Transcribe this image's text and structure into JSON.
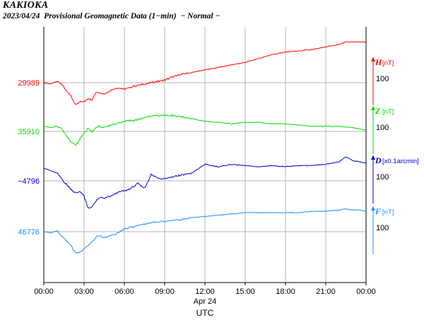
{
  "title": "KAKIOKA",
  "subtitle": "2023/04/24  Provisional Geomagnetic Data (1−min)  − Normal −",
  "colors": {
    "H": "#ff0000",
    "Z": "#00dd00",
    "D": "#0000cc",
    "F": "#1e90ff"
  },
  "chart_data": {
    "type": "line",
    "title": "2023/04/24  Provisional Geomagnetic Data (1−min)  − Normal −",
    "xlabel": "UTC",
    "x_ticks": [
      "00:00",
      "03:00",
      "06:00",
      "09:00",
      "12:00",
      "15:00",
      "18:00",
      "21:00",
      "00:00"
    ],
    "x_date_label": "Apr 24",
    "xlim": [
      "00:00",
      "24:00"
    ],
    "grid": true,
    "series": [
      {
        "name": "H",
        "unit": "[nT]",
        "baseline_label": "29989",
        "scale_label": "100",
        "color": "#ff0000",
        "x": [
          0,
          0.5,
          1,
          1.3,
          1.6,
          2.0,
          2.4,
          2.7,
          3.0,
          3.3,
          3.6,
          3.9,
          4.2,
          4.5,
          5.0,
          5.5,
          6.0,
          7.0,
          8.0,
          9.0,
          10.0,
          11.0,
          12.0,
          13.0,
          14.0,
          15.0,
          16.0,
          17.0,
          18.0,
          19.0,
          20.0,
          21.0,
          22.0,
          22.5,
          23.0,
          23.5,
          24.0
        ],
        "values": [
          0,
          -5,
          5,
          -5,
          -25,
          -50,
          -90,
          -75,
          -75,
          -60,
          -70,
          -35,
          -40,
          -45,
          -30,
          -20,
          -25,
          -10,
          0,
          10,
          30,
          40,
          50,
          60,
          70,
          80,
          95,
          110,
          120,
          125,
          130,
          140,
          150,
          160,
          160,
          160,
          160
        ]
      },
      {
        "name": "Z",
        "unit": "[nT]",
        "baseline_label": "35910",
        "scale_label": "100",
        "color": "#00dd00",
        "x": [
          0,
          0.5,
          1,
          1.3,
          1.6,
          2.0,
          2.4,
          2.7,
          3.0,
          3.3,
          3.6,
          4.0,
          4.5,
          5.0,
          6.0,
          7.0,
          8.0,
          9.0,
          10.0,
          10.5,
          11.0,
          12.0,
          13.0,
          14.0,
          15.0,
          16.0,
          17.0,
          18.0,
          19.0,
          20.0,
          21.0,
          22.0,
          23.0,
          23.5,
          24.0
        ],
        "values": [
          20,
          15,
          20,
          10,
          -10,
          -40,
          -55,
          -30,
          -5,
          10,
          0,
          20,
          15,
          25,
          40,
          45,
          60,
          65,
          60,
          55,
          50,
          40,
          35,
          30,
          35,
          35,
          30,
          30,
          25,
          20,
          20,
          20,
          15,
          10,
          5
        ]
      },
      {
        "name": "D",
        "unit": "[x0.1arcmin]",
        "baseline_label": "−4796",
        "scale_label": "100",
        "color": "#0000cc",
        "x": [
          0,
          0.5,
          1,
          1.3,
          1.6,
          2.0,
          2.4,
          2.7,
          3.0,
          3.3,
          3.6,
          3.9,
          4.2,
          4.5,
          5.0,
          5.5,
          6.0,
          6.5,
          7.0,
          7.5,
          8.0,
          8.5,
          9.0,
          10.0,
          11.0,
          12.0,
          13.0,
          14.0,
          15.0,
          16.0,
          17.0,
          18.0,
          19.0,
          20.0,
          21.0,
          22.0,
          22.5,
          23.0,
          23.5,
          24.0
        ],
        "values": [
          50,
          40,
          30,
          10,
          -10,
          -30,
          -50,
          -40,
          -60,
          -110,
          -100,
          -80,
          -65,
          -70,
          -60,
          -45,
          -40,
          -30,
          -10,
          -30,
          25,
          10,
          10,
          20,
          30,
          65,
          55,
          65,
          60,
          55,
          60,
          55,
          60,
          60,
          65,
          75,
          95,
          80,
          75,
          70
        ]
      },
      {
        "name": "F",
        "unit": "[nT]",
        "baseline_label": "46776",
        "scale_label": "100",
        "color": "#1e90ff",
        "x": [
          0,
          0.5,
          1,
          1.3,
          1.6,
          2.0,
          2.4,
          2.7,
          3.0,
          3.3,
          3.6,
          4.0,
          4.5,
          5.0,
          5.5,
          6.0,
          7.0,
          8.0,
          9.0,
          10.0,
          11.0,
          12.0,
          13.0,
          14.0,
          15.0,
          16.0,
          17.0,
          18.0,
          19.0,
          20.0,
          21.0,
          22.0,
          22.5,
          23.0,
          23.5,
          24.0
        ],
        "values": [
          0,
          -5,
          5,
          -15,
          -30,
          -55,
          -85,
          -80,
          -65,
          -55,
          -40,
          -15,
          -25,
          -15,
          -5,
          10,
          25,
          35,
          40,
          45,
          55,
          60,
          65,
          70,
          75,
          75,
          75,
          75,
          75,
          80,
          80,
          85,
          90,
          85,
          85,
          80
        ]
      }
    ]
  }
}
